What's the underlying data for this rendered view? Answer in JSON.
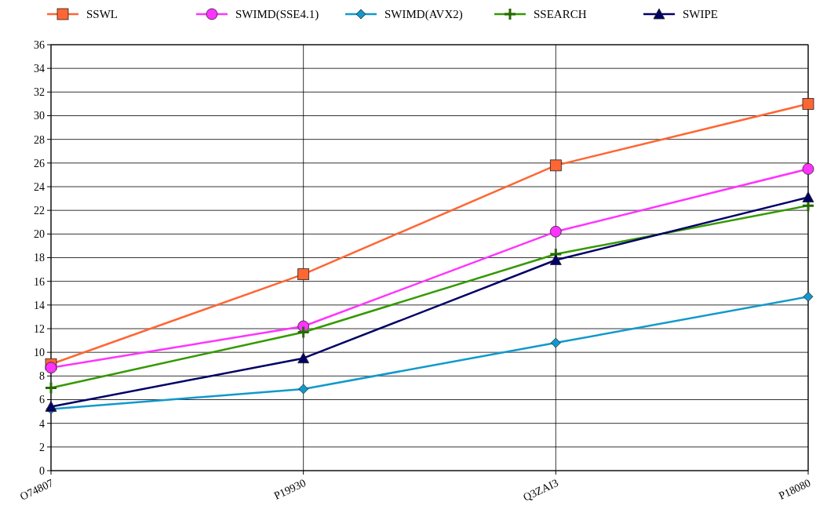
{
  "chart_data": {
    "type": "line",
    "categories": [
      "O74807",
      "P19930",
      "Q3ZAI3",
      "P18080"
    ],
    "ylim": [
      0,
      36
    ],
    "yticks": [
      0,
      2,
      4,
      6,
      8,
      10,
      12,
      14,
      16,
      18,
      20,
      22,
      24,
      26,
      28,
      30,
      32,
      34,
      36
    ],
    "grid": true,
    "legend": "top",
    "series": [
      {
        "name": "SSWL",
        "color": "#ff6633",
        "marker": "square",
        "values": [
          9.0,
          16.6,
          25.8,
          31.0
        ]
      },
      {
        "name": "SWIMD(SSE4.1)",
        "color": "#ff33ff",
        "marker": "circle",
        "values": [
          8.7,
          12.2,
          20.2,
          25.5
        ]
      },
      {
        "name": "SWIMD(AVX2)",
        "color": "#1199cc",
        "marker": "diamond",
        "values": [
          5.2,
          6.9,
          10.8,
          14.7
        ]
      },
      {
        "name": "SSEARCH",
        "color": "#339900",
        "marker": "cross",
        "values": [
          7.0,
          11.7,
          18.3,
          22.4
        ]
      },
      {
        "name": "SWIPE",
        "color": "#000066",
        "marker": "triangle",
        "values": [
          5.4,
          9.5,
          17.8,
          23.1
        ]
      }
    ]
  }
}
